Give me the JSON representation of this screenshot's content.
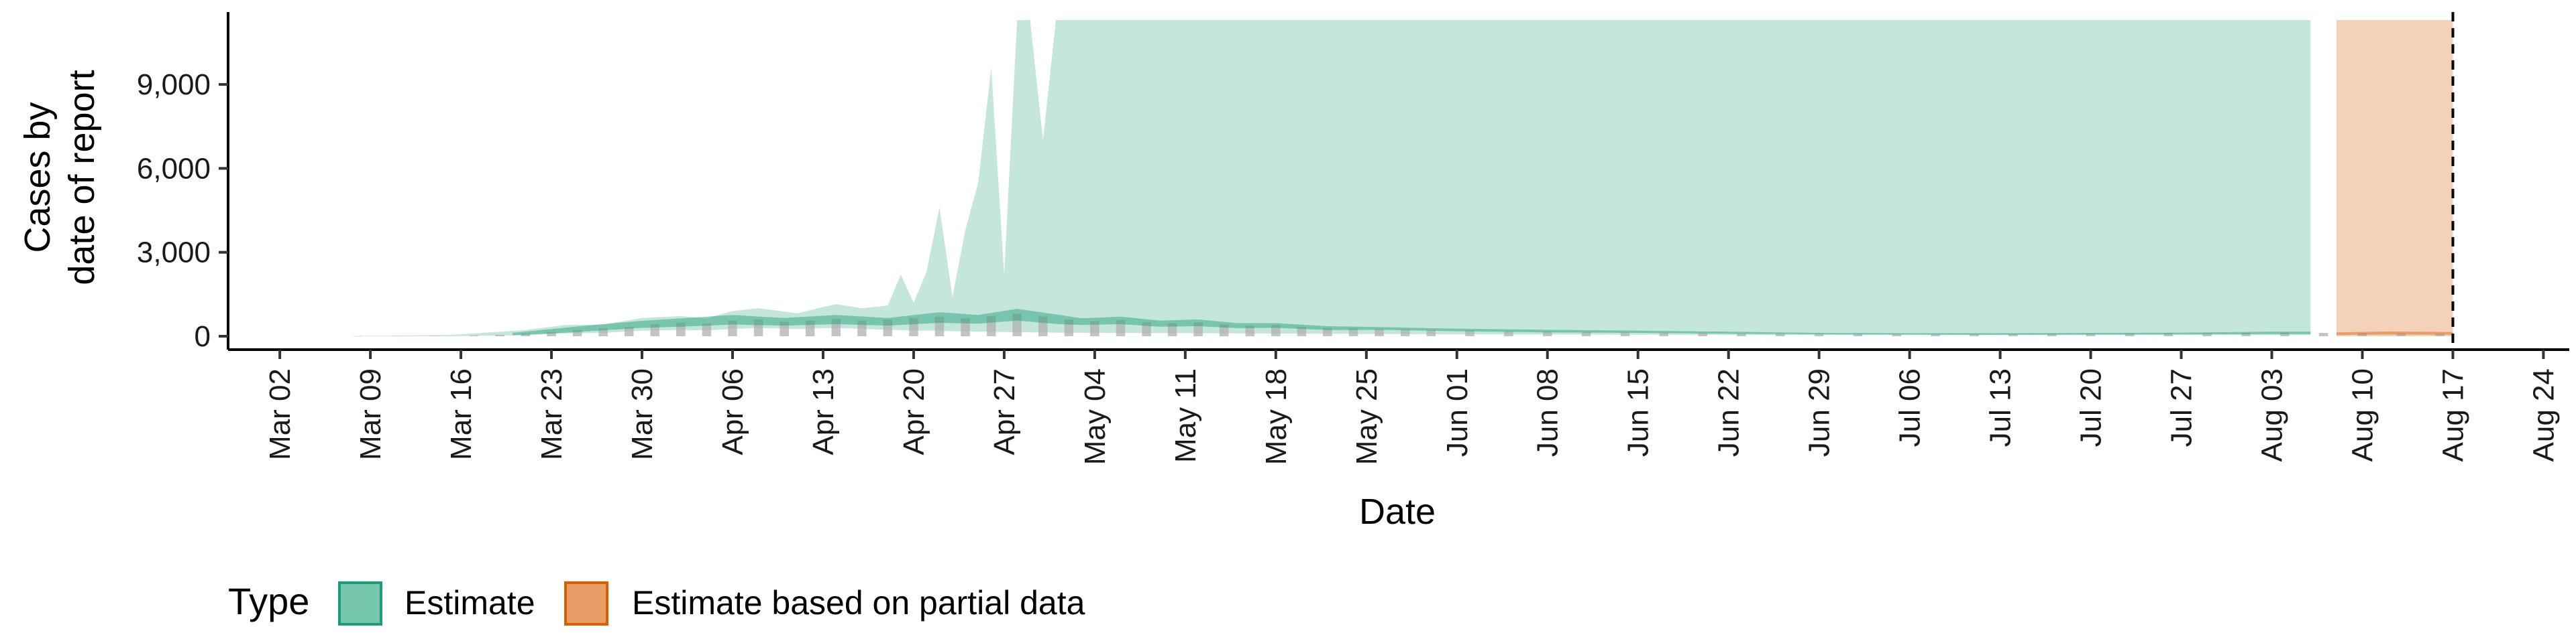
{
  "chart_data": {
    "type": "area",
    "xlabel": "Date",
    "ylabel_lines": [
      "Cases by",
      "date of report"
    ],
    "ylim": [
      0,
      11300
    ],
    "y_ticks": [
      0,
      3000,
      6000,
      9000
    ],
    "y_tick_labels": [
      "0",
      "3,000",
      "6,000",
      "9,000"
    ],
    "x_ticks": [
      "2020-03-02",
      "2020-03-09",
      "2020-03-16",
      "2020-03-23",
      "2020-03-30",
      "2020-04-06",
      "2020-04-13",
      "2020-04-20",
      "2020-04-27",
      "2020-05-04",
      "2020-05-11",
      "2020-05-18",
      "2020-05-25",
      "2020-06-01",
      "2020-06-08",
      "2020-06-15",
      "2020-06-22",
      "2020-06-29",
      "2020-07-06",
      "2020-07-13",
      "2020-07-20",
      "2020-07-27",
      "2020-08-03",
      "2020-08-10",
      "2020-08-17",
      "2020-08-24"
    ],
    "x_tick_labels": [
      "Mar 02",
      "Mar 09",
      "Mar 16",
      "Mar 23",
      "Mar 30",
      "Apr 06",
      "Apr 13",
      "Apr 20",
      "Apr 27",
      "May 04",
      "May 11",
      "May 18",
      "May 25",
      "Jun 01",
      "Jun 08",
      "Jun 15",
      "Jun 22",
      "Jun 29",
      "Jul 06",
      "Jul 13",
      "Jul 20",
      "Jul 27",
      "Aug 03",
      "Aug 10",
      "Aug 17",
      "Aug 24"
    ],
    "xlim": [
      "2020-02-27",
      "2020-08-26"
    ],
    "vline_date": "2020-08-17",
    "colors": {
      "estimate": "#1b9e77",
      "partial": "#d95f02",
      "bars": "#b0b0b0"
    },
    "legend": {
      "title": "Type",
      "position": "bottom",
      "items": [
        {
          "label": "Estimate",
          "key": "estimate"
        },
        {
          "label": "Estimate based on partial data",
          "key": "partial"
        }
      ]
    },
    "estimate_outer_band": [
      [
        "2020-03-08",
        0,
        10
      ],
      [
        "2020-03-15",
        0,
        40
      ],
      [
        "2020-03-21",
        40,
        220
      ],
      [
        "2020-03-24",
        100,
        400
      ],
      [
        "2020-03-27",
        120,
        420
      ],
      [
        "2020-03-30",
        200,
        650
      ],
      [
        "2020-04-02",
        220,
        720
      ],
      [
        "2020-04-04",
        210,
        640
      ],
      [
        "2020-04-06",
        260,
        900
      ],
      [
        "2020-04-08",
        300,
        1000
      ],
      [
        "2020-04-11",
        260,
        820
      ],
      [
        "2020-04-14",
        300,
        1150
      ],
      [
        "2020-04-16",
        260,
        1000
      ],
      [
        "2020-04-18",
        230,
        1100
      ],
      [
        "2020-04-19",
        220,
        2200
      ],
      [
        "2020-04-20",
        200,
        1200
      ],
      [
        "2020-04-21",
        200,
        2300
      ],
      [
        "2020-04-22",
        200,
        4600
      ],
      [
        "2020-04-23",
        180,
        1400
      ],
      [
        "2020-04-24",
        180,
        3800
      ],
      [
        "2020-04-25",
        160,
        5500
      ],
      [
        "2020-04-26",
        160,
        9600
      ],
      [
        "2020-04-27",
        150,
        2200
      ],
      [
        "2020-04-28",
        150,
        11300
      ],
      [
        "2020-04-29",
        140,
        11300
      ],
      [
        "2020-04-30",
        140,
        7000
      ],
      [
        "2020-05-01",
        130,
        11300
      ],
      [
        "2020-05-15",
        100,
        11300
      ],
      [
        "2020-06-01",
        70,
        11300
      ],
      [
        "2020-07-01",
        40,
        11300
      ],
      [
        "2020-08-06",
        40,
        11300
      ]
    ],
    "estimate_inner_band": [
      [
        "2020-03-20",
        30,
        120
      ],
      [
        "2020-03-25",
        150,
        350
      ],
      [
        "2020-03-30",
        300,
        550
      ],
      [
        "2020-04-02",
        340,
        640
      ],
      [
        "2020-04-06",
        420,
        760
      ],
      [
        "2020-04-10",
        380,
        650
      ],
      [
        "2020-04-14",
        430,
        760
      ],
      [
        "2020-04-18",
        380,
        650
      ],
      [
        "2020-04-22",
        480,
        860
      ],
      [
        "2020-04-25",
        450,
        760
      ],
      [
        "2020-04-28",
        560,
        980
      ],
      [
        "2020-05-01",
        440,
        780
      ],
      [
        "2020-05-03",
        400,
        640
      ],
      [
        "2020-05-06",
        430,
        700
      ],
      [
        "2020-05-09",
        340,
        560
      ],
      [
        "2020-05-12",
        360,
        600
      ],
      [
        "2020-05-15",
        290,
        470
      ],
      [
        "2020-05-18",
        300,
        470
      ],
      [
        "2020-05-22",
        220,
        360
      ],
      [
        "2020-05-26",
        230,
        330
      ],
      [
        "2020-06-01",
        180,
        270
      ],
      [
        "2020-06-08",
        140,
        230
      ],
      [
        "2020-06-15",
        120,
        200
      ],
      [
        "2020-06-22",
        90,
        160
      ],
      [
        "2020-06-29",
        70,
        120
      ],
      [
        "2020-07-06",
        60,
        110
      ],
      [
        "2020-07-13",
        50,
        110
      ],
      [
        "2020-07-20",
        60,
        120
      ],
      [
        "2020-07-27",
        70,
        130
      ],
      [
        "2020-08-03",
        80,
        160
      ],
      [
        "2020-08-06",
        80,
        160
      ]
    ],
    "partial_outer_band": [
      [
        "2020-08-08",
        0,
        11300
      ],
      [
        "2020-08-17",
        0,
        11300
      ]
    ],
    "partial_inner_band": [
      [
        "2020-08-08",
        40,
        140
      ],
      [
        "2020-08-12",
        60,
        170
      ],
      [
        "2020-08-17",
        50,
        150
      ]
    ],
    "reported_cases": [
      [
        "2020-03-08",
        3
      ],
      [
        "2020-03-11",
        8
      ],
      [
        "2020-03-14",
        15
      ],
      [
        "2020-03-17",
        30
      ],
      [
        "2020-03-19",
        50
      ],
      [
        "2020-03-21",
        90
      ],
      [
        "2020-03-23",
        150
      ],
      [
        "2020-03-25",
        220
      ],
      [
        "2020-03-27",
        280
      ],
      [
        "2020-03-29",
        330
      ],
      [
        "2020-03-31",
        420
      ],
      [
        "2020-04-02",
        480
      ],
      [
        "2020-04-04",
        460
      ],
      [
        "2020-04-06",
        560
      ],
      [
        "2020-04-08",
        600
      ],
      [
        "2020-04-10",
        520
      ],
      [
        "2020-04-12",
        560
      ],
      [
        "2020-04-14",
        620
      ],
      [
        "2020-04-16",
        560
      ],
      [
        "2020-04-18",
        600
      ],
      [
        "2020-04-20",
        650
      ],
      [
        "2020-04-22",
        700
      ],
      [
        "2020-04-24",
        640
      ],
      [
        "2020-04-26",
        720
      ],
      [
        "2020-04-28",
        800
      ],
      [
        "2020-04-30",
        700
      ],
      [
        "2020-05-02",
        600
      ],
      [
        "2020-05-04",
        540
      ],
      [
        "2020-05-06",
        580
      ],
      [
        "2020-05-08",
        500
      ],
      [
        "2020-05-10",
        470
      ],
      [
        "2020-05-12",
        500
      ],
      [
        "2020-05-14",
        420
      ],
      [
        "2020-05-16",
        380
      ],
      [
        "2020-05-18",
        400
      ],
      [
        "2020-05-20",
        330
      ],
      [
        "2020-05-22",
        300
      ],
      [
        "2020-05-24",
        280
      ],
      [
        "2020-05-26",
        260
      ],
      [
        "2020-05-28",
        240
      ],
      [
        "2020-05-30",
        220
      ],
      [
        "2020-06-02",
        200
      ],
      [
        "2020-06-05",
        180
      ],
      [
        "2020-06-08",
        170
      ],
      [
        "2020-06-11",
        150
      ],
      [
        "2020-06-14",
        140
      ],
      [
        "2020-06-17",
        130
      ],
      [
        "2020-06-20",
        110
      ],
      [
        "2020-06-23",
        100
      ],
      [
        "2020-06-26",
        90
      ],
      [
        "2020-06-29",
        80
      ],
      [
        "2020-07-02",
        80
      ],
      [
        "2020-07-05",
        70
      ],
      [
        "2020-07-08",
        70
      ],
      [
        "2020-07-11",
        75
      ],
      [
        "2020-07-14",
        80
      ],
      [
        "2020-07-17",
        85
      ],
      [
        "2020-07-20",
        90
      ],
      [
        "2020-07-23",
        95
      ],
      [
        "2020-07-26",
        100
      ],
      [
        "2020-07-29",
        110
      ],
      [
        "2020-08-01",
        120
      ],
      [
        "2020-08-04",
        130
      ],
      [
        "2020-08-07",
        120
      ],
      [
        "2020-08-10",
        110
      ],
      [
        "2020-08-13",
        100
      ],
      [
        "2020-08-16",
        90
      ]
    ]
  }
}
